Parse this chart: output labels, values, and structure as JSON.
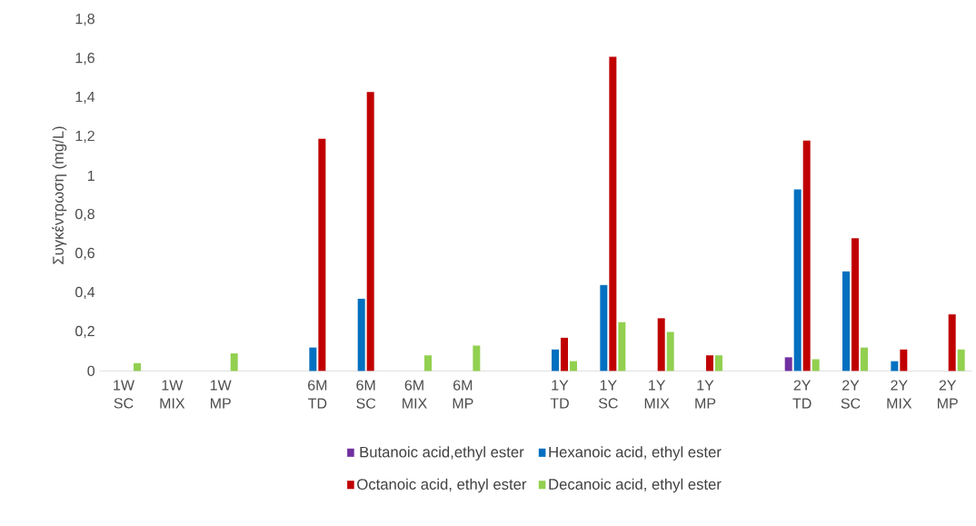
{
  "chart_data": {
    "type": "bar",
    "ylabel": "Συγκέντρωση (mg/L)",
    "categories": [
      "1W SC",
      "1W MIX",
      "1W MP",
      null,
      "6M TD",
      "6M SC",
      "6M MIX",
      "6M MP",
      null,
      "1Y TD",
      "1Y SC",
      "1Y MIX",
      "1Y MP",
      null,
      "2Y TD",
      "2Y SC",
      "2Y MIX",
      "2Y MP"
    ],
    "series": [
      {
        "name": "Butanoic acid,ethyl ester",
        "color": "#7030a0",
        "values": [
          null,
          null,
          null,
          null,
          null,
          null,
          null,
          null,
          null,
          null,
          null,
          null,
          null,
          null,
          0.07,
          null,
          null,
          null
        ]
      },
      {
        "name": "Hexanoic acid, ethyl ester",
        "color": "#0070c0",
        "values": [
          null,
          null,
          null,
          null,
          0.12,
          0.37,
          null,
          null,
          null,
          0.11,
          0.44,
          null,
          null,
          null,
          0.93,
          0.51,
          0.05,
          null
        ]
      },
      {
        "name": "Octanoic acid, ethyl ester",
        "color": "#c00000",
        "values": [
          null,
          null,
          null,
          null,
          1.19,
          1.43,
          null,
          null,
          null,
          0.17,
          1.61,
          0.27,
          0.08,
          null,
          1.18,
          0.68,
          0.11,
          0.29
        ]
      },
      {
        "name": "Decanoic acid, ethyl ester",
        "color": "#92d050",
        "values": [
          0.04,
          null,
          0.09,
          null,
          null,
          null,
          0.08,
          0.13,
          null,
          0.05,
          0.25,
          0.2,
          0.08,
          null,
          0.06,
          0.12,
          null,
          0.11
        ]
      }
    ],
    "ylim": [
      0,
      1.8
    ],
    "yticks": [
      0,
      {
        "value": 0.2,
        "label": "0,2"
      },
      {
        "value": 0.4,
        "label": "0,4"
      },
      {
        "value": 0.6,
        "label": "0,6"
      },
      {
        "value": 0.8,
        "label": "0,8"
      },
      1,
      {
        "value": 1.2,
        "label": "1,2"
      },
      {
        "value": 1.4,
        "label": "1,4"
      },
      {
        "value": 1.6,
        "label": "1,6"
      },
      {
        "value": 1.8,
        "label": "1,8"
      }
    ],
    "legend": "bottom"
  }
}
